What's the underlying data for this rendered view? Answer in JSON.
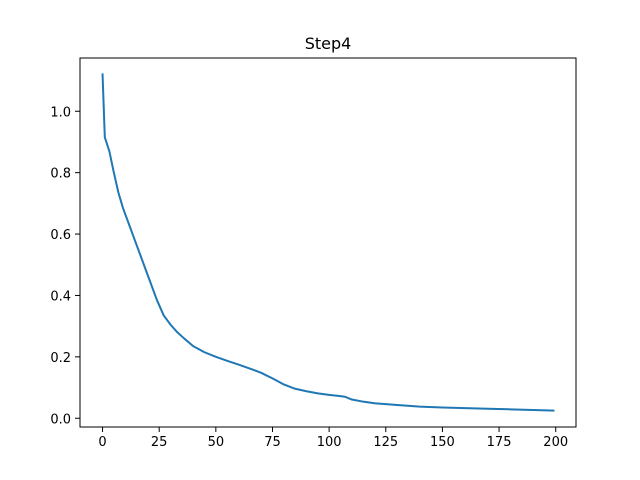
{
  "chart_data": {
    "type": "line",
    "title": "Step4",
    "xlabel": "",
    "ylabel": "",
    "xlim": [
      -9.95,
      208.95
    ],
    "ylim": [
      -0.0285,
      1.1735
    ],
    "grid": false,
    "legend": "none",
    "x_ticks": [
      0,
      25,
      50,
      75,
      100,
      125,
      150,
      175,
      200
    ],
    "x_tick_labels": [
      "0",
      "25",
      "50",
      "75",
      "100",
      "125",
      "150",
      "175",
      "200"
    ],
    "y_ticks": [
      0.0,
      0.2,
      0.4,
      0.6,
      0.8,
      1.0
    ],
    "y_tick_labels": [
      "0.0",
      "0.2",
      "0.4",
      "0.6",
      "0.8",
      "1.0"
    ],
    "series": [
      {
        "color": "#1f77b4",
        "x": [
          0,
          1,
          3,
          5,
          7,
          9,
          12,
          15,
          18,
          21,
          24,
          27,
          30,
          33,
          36,
          40,
          45,
          50,
          55,
          60,
          65,
          70,
          75,
          80,
          85,
          90,
          95,
          100,
          105,
          107,
          110,
          115,
          120,
          125,
          130,
          140,
          150,
          160,
          170,
          180,
          190,
          199
        ],
        "y": [
          1.12,
          0.915,
          0.87,
          0.8,
          0.735,
          0.685,
          0.625,
          0.565,
          0.505,
          0.445,
          0.385,
          0.335,
          0.305,
          0.28,
          0.26,
          0.235,
          0.215,
          0.2,
          0.187,
          0.175,
          0.162,
          0.148,
          0.13,
          0.11,
          0.096,
          0.088,
          0.081,
          0.076,
          0.072,
          0.07,
          0.061,
          0.054,
          0.049,
          0.046,
          0.043,
          0.038,
          0.035,
          0.033,
          0.031,
          0.029,
          0.027,
          0.025
        ]
      }
    ]
  }
}
